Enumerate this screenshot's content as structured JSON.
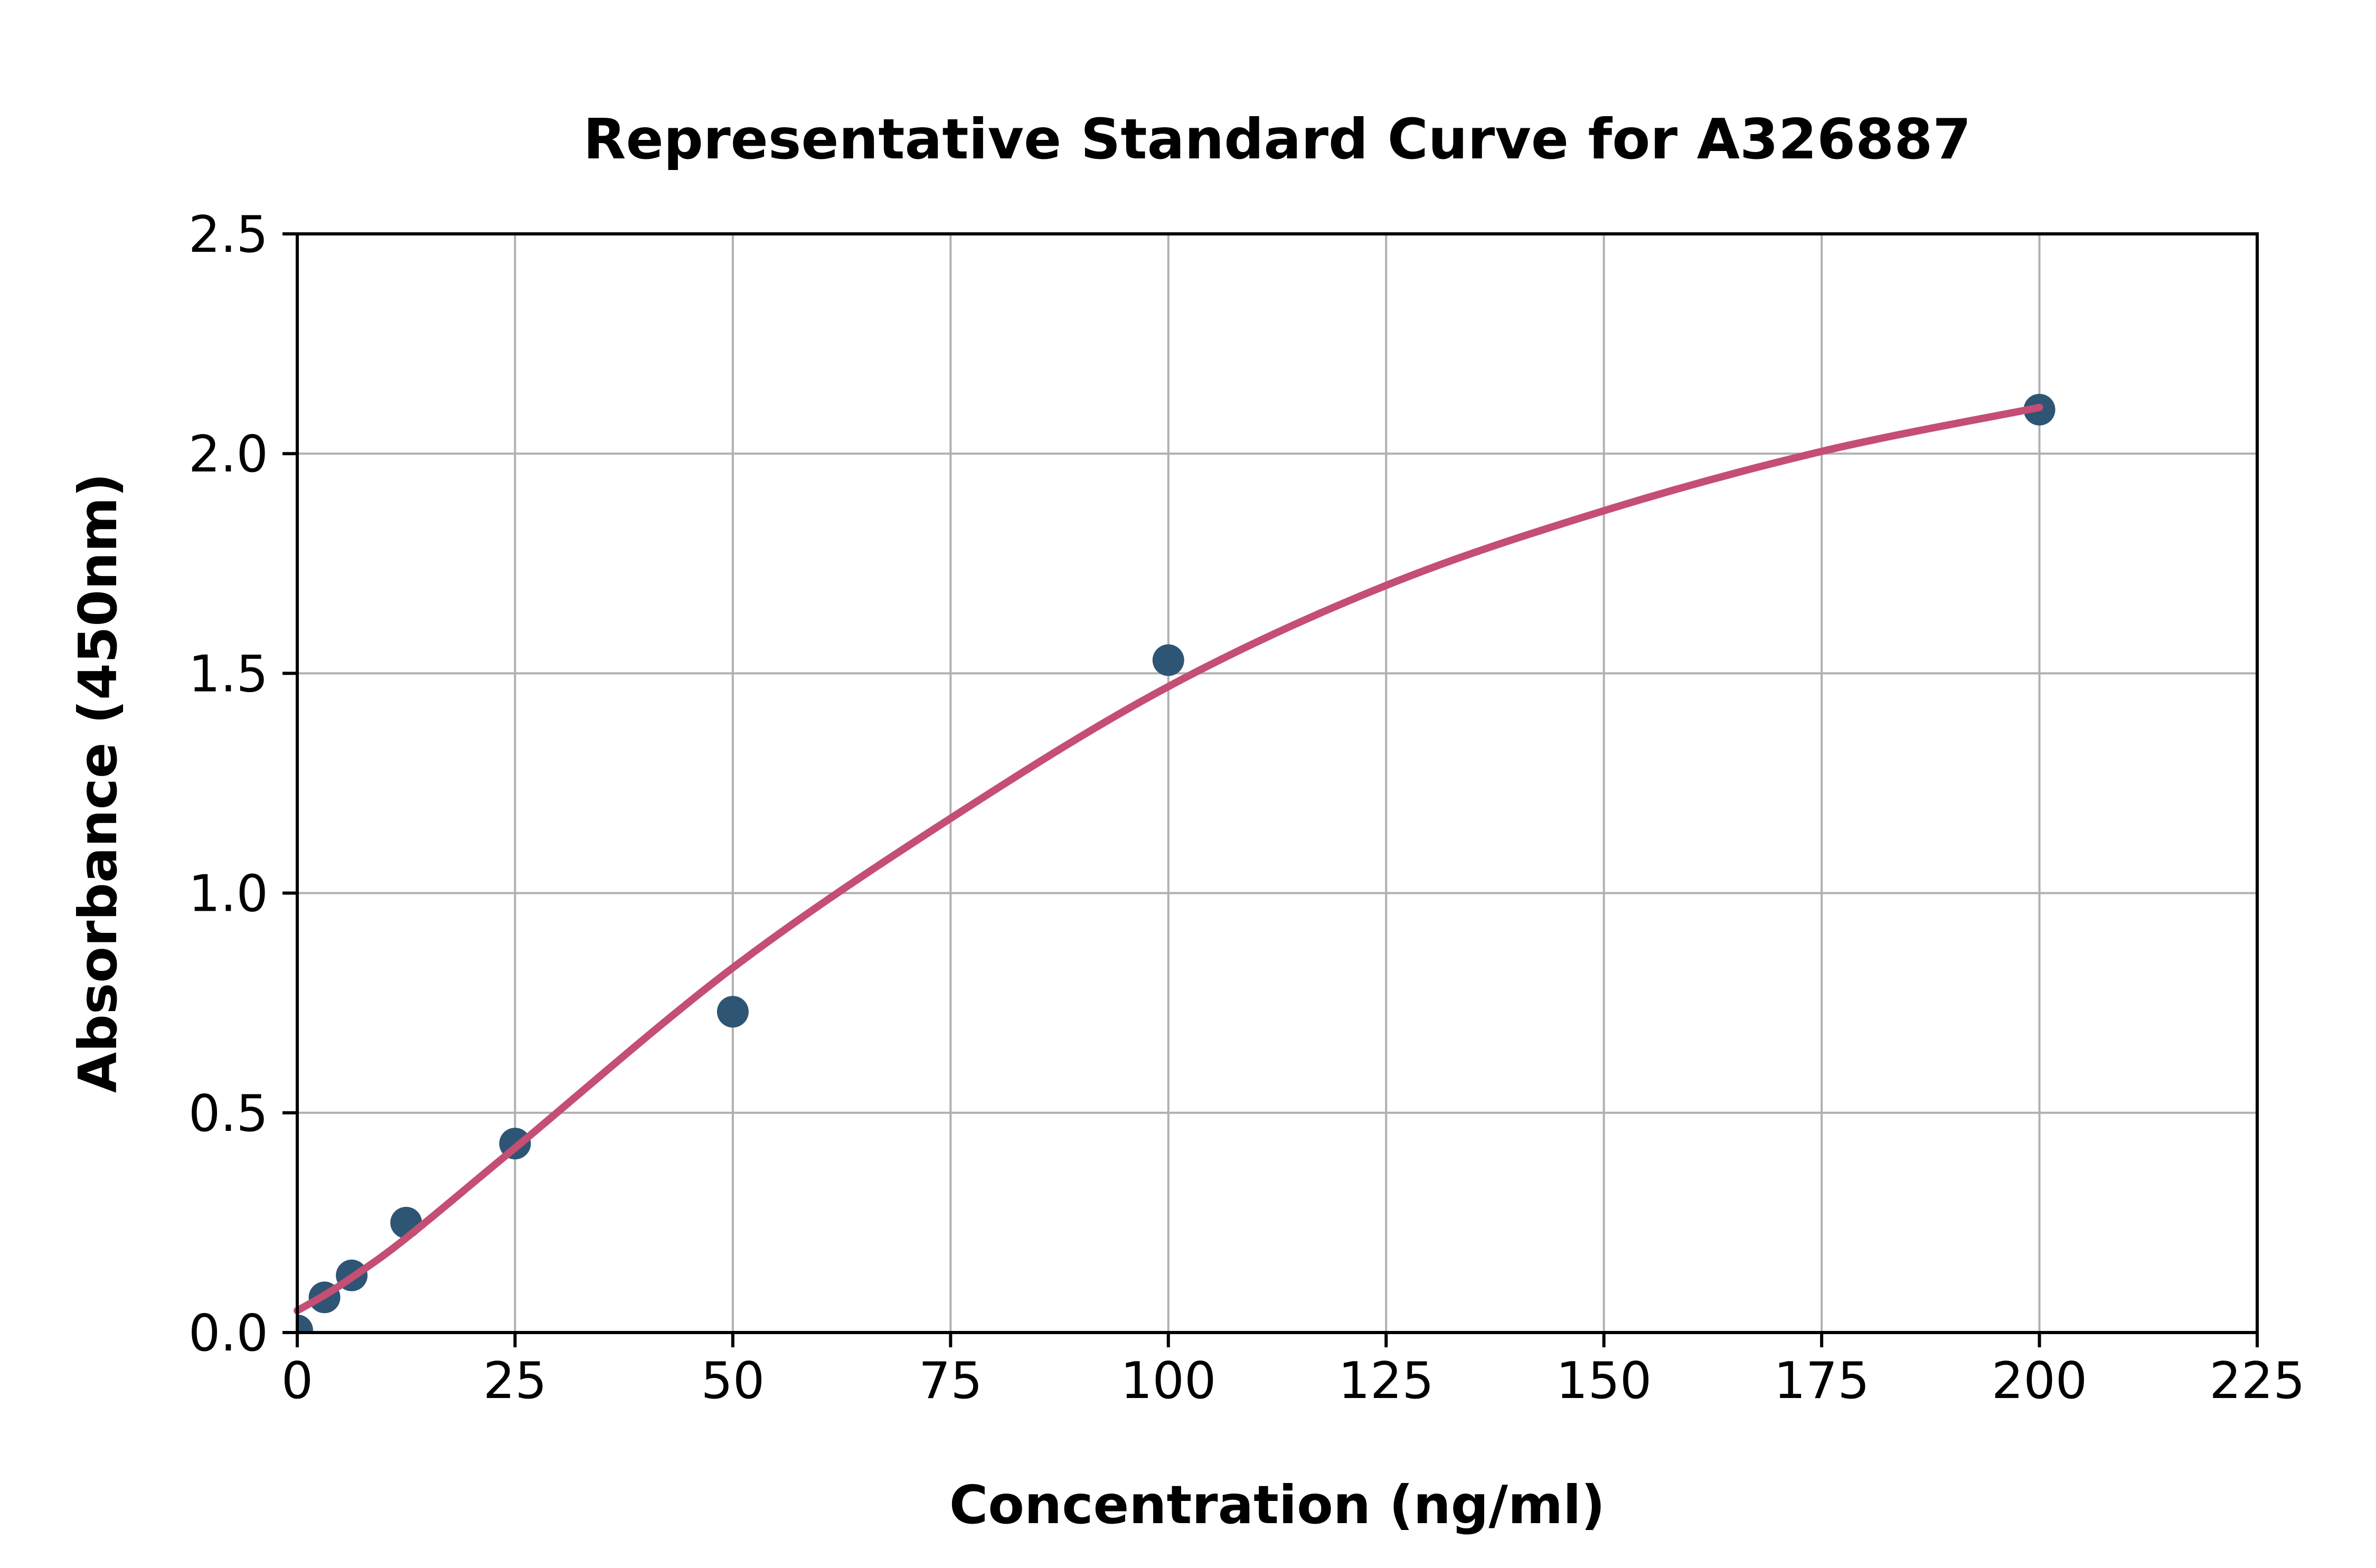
{
  "chart_data": {
    "type": "scatter",
    "title": "Representative Standard Curve for A326887",
    "xlabel": "Concentration (ng/ml)",
    "ylabel": "Absorbance (450nm)",
    "xlim": [
      0,
      225
    ],
    "ylim": [
      0,
      2.5
    ],
    "grid": true,
    "legend": "none",
    "xticks": [
      {
        "v": 0,
        "label": "0"
      },
      {
        "v": 25,
        "label": "25"
      },
      {
        "v": 50,
        "label": "50"
      },
      {
        "v": 75,
        "label": "75"
      },
      {
        "v": 100,
        "label": "100"
      },
      {
        "v": 125,
        "label": "125"
      },
      {
        "v": 150,
        "label": "150"
      },
      {
        "v": 175,
        "label": "175"
      },
      {
        "v": 200,
        "label": "200"
      },
      {
        "v": 225,
        "label": "225"
      }
    ],
    "yticks": [
      {
        "v": 0.0,
        "label": "0.0"
      },
      {
        "v": 0.5,
        "label": "0.5"
      },
      {
        "v": 1.0,
        "label": "1.0"
      },
      {
        "v": 1.5,
        "label": "1.5"
      },
      {
        "v": 2.0,
        "label": "2.0"
      },
      {
        "v": 2.5,
        "label": "2.5"
      }
    ],
    "points": [
      {
        "x": 0,
        "y": 0.005
      },
      {
        "x": 3.125,
        "y": 0.08
      },
      {
        "x": 6.25,
        "y": 0.13
      },
      {
        "x": 12.5,
        "y": 0.25
      },
      {
        "x": 25,
        "y": 0.43
      },
      {
        "x": 50,
        "y": 0.73
      },
      {
        "x": 100,
        "y": 1.53
      },
      {
        "x": 200,
        "y": 2.1
      }
    ],
    "fit_curve": [
      [
        0,
        0.05
      ],
      [
        3.125,
        0.085
      ],
      [
        6.25,
        0.125
      ],
      [
        12.5,
        0.215
      ],
      [
        25,
        0.42
      ],
      [
        50,
        0.83
      ],
      [
        75,
        1.17
      ],
      [
        100,
        1.47
      ],
      [
        125,
        1.7
      ],
      [
        150,
        1.87
      ],
      [
        175,
        2.005
      ],
      [
        200,
        2.105
      ]
    ],
    "colors": {
      "point": "#2E5574",
      "curve": "#C44E74",
      "grid": "#B0B0B0",
      "axis": "#000000",
      "background": "#FFFFFF"
    }
  }
}
